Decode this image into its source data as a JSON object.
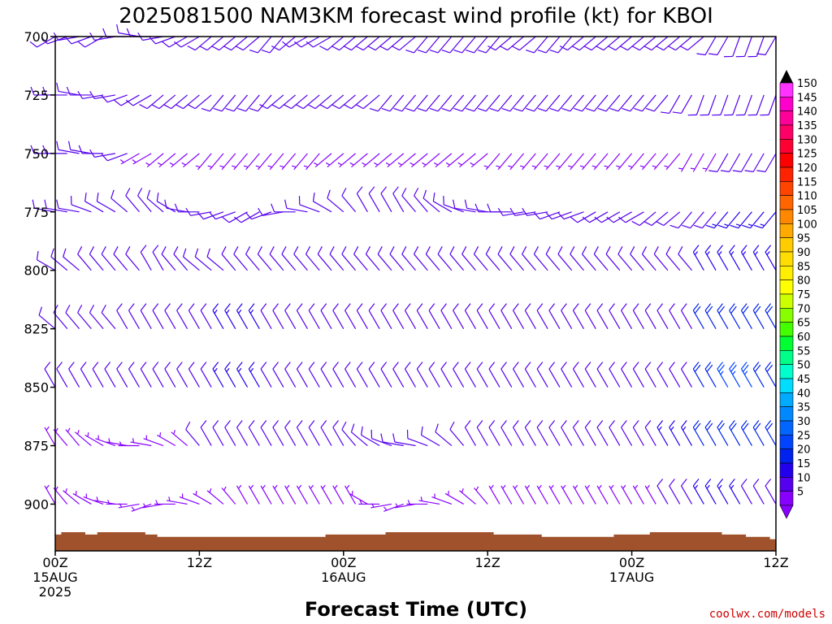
{
  "title": "2025081500 NAM3KM forecast wind profile (kt) for KBOI",
  "credit": "coolwx.com/models",
  "colors": {
    "barb": "#7733ee",
    "terrain": "#a0522d",
    "credit": "#cc0000"
  },
  "chart_data": {
    "type": "wind-barb",
    "title": "2025081500 NAM3KM forecast wind profile (kt) for KBOI",
    "xlabel": "Forecast Time (UTC)",
    "ylabel": "",
    "y_scale": "pressure (reversed)",
    "ylim": [
      700,
      920
    ],
    "y_ticks": [
      700,
      725,
      750,
      775,
      800,
      825,
      850,
      875,
      900
    ],
    "x_ticks": [
      {
        "hour": 0,
        "lines": [
          "00Z",
          "15AUG",
          "2025"
        ]
      },
      {
        "hour": 12,
        "lines": [
          "12Z"
        ]
      },
      {
        "hour": 24,
        "lines": [
          "00Z",
          "16AUG"
        ]
      },
      {
        "hour": 36,
        "lines": [
          "12Z"
        ]
      },
      {
        "hour": 48,
        "lines": [
          "00Z",
          "17AUG"
        ]
      },
      {
        "hour": 60,
        "lines": [
          "12Z"
        ]
      }
    ],
    "xlim_hours": [
      0,
      60
    ],
    "time_step_hours": 1,
    "levels_mb": [
      700,
      725,
      750,
      775,
      800,
      825,
      850,
      875,
      900
    ],
    "colorbar": {
      "units": "kt",
      "ticks": [
        150,
        145,
        140,
        135,
        130,
        125,
        120,
        115,
        110,
        105,
        100,
        95,
        90,
        85,
        80,
        75,
        70,
        65,
        60,
        55,
        50,
        45,
        40,
        35,
        30,
        25,
        20,
        15,
        10,
        5
      ],
      "colors": [
        "#ff33ff",
        "#ff00cc",
        "#ff0099",
        "#ff0066",
        "#ff0033",
        "#ff0000",
        "#ff2200",
        "#ff4400",
        "#ff6600",
        "#ff8800",
        "#ffaa00",
        "#ffcc00",
        "#ffdd00",
        "#ffee00",
        "#ffff00",
        "#ccff00",
        "#88ff00",
        "#44ff00",
        "#00ff33",
        "#00ff88",
        "#00ffcc",
        "#00ddff",
        "#00aaff",
        "#0088ff",
        "#0066ff",
        "#0044ff",
        "#0022ee",
        "#2200ee",
        "#5500ee",
        "#8800ff"
      ]
    },
    "surface_pressure_mb": [
      913,
      912,
      912,
      913,
      912,
      912,
      912,
      912,
      913,
      914,
      914,
      914,
      914,
      914,
      914,
      914,
      914,
      914,
      914,
      914,
      914,
      914,
      914,
      913,
      913,
      913,
      913,
      913,
      912,
      912,
      912,
      912,
      912,
      912,
      912,
      912,
      912,
      913,
      913,
      913,
      913,
      914,
      914,
      914,
      914,
      914,
      914,
      913,
      913,
      913,
      912,
      912,
      912,
      912,
      912,
      912,
      913,
      913,
      914,
      914,
      915
    ],
    "profile": [
      {
        "mb": 700,
        "dir": [
          240,
          250,
          260,
          250,
          240,
          260,
          270,
          280,
          270,
          260,
          250,
          240,
          240,
          230,
          230,
          230,
          230,
          230,
          220,
          220,
          230,
          240,
          240,
          240,
          230,
          230,
          230,
          230,
          230,
          230,
          230,
          220,
          220,
          220,
          220,
          220,
          220,
          220,
          230,
          230,
          230,
          220,
          220,
          220,
          230,
          230,
          230,
          230,
          230,
          230,
          230,
          230,
          230,
          230,
          230,
          210,
          210,
          200,
          200,
          200,
          210
        ],
        "spd": [
          10,
          10,
          10,
          10,
          10,
          10,
          8,
          8,
          8,
          8,
          8,
          8,
          8,
          8,
          8,
          8,
          8,
          8,
          8,
          8,
          8,
          8,
          8,
          8,
          10,
          10,
          10,
          10,
          10,
          10,
          10,
          10,
          10,
          10,
          10,
          10,
          10,
          10,
          10,
          10,
          10,
          10,
          10,
          10,
          10,
          12,
          12,
          12,
          12,
          12,
          12,
          12,
          12,
          12,
          12,
          12,
          12,
          12,
          12,
          12,
          12
        ]
      },
      {
        "mb": 725,
        "dir": [
          270,
          270,
          280,
          270,
          260,
          260,
          250,
          240,
          240,
          230,
          230,
          230,
          230,
          230,
          220,
          220,
          220,
          220,
          220,
          230,
          230,
          230,
          230,
          230,
          230,
          230,
          230,
          230,
          220,
          220,
          220,
          220,
          220,
          220,
          220,
          220,
          220,
          220,
          220,
          220,
          220,
          220,
          220,
          220,
          220,
          220,
          220,
          220,
          220,
          220,
          220,
          220,
          210,
          210,
          200,
          200,
          200,
          200,
          200,
          200,
          200
        ],
        "spd": [
          10,
          10,
          10,
          10,
          10,
          8,
          8,
          8,
          8,
          8,
          8,
          8,
          8,
          8,
          8,
          8,
          8,
          8,
          8,
          8,
          8,
          8,
          8,
          8,
          8,
          8,
          8,
          8,
          8,
          8,
          8,
          8,
          8,
          8,
          8,
          8,
          8,
          8,
          8,
          8,
          8,
          8,
          8,
          8,
          8,
          8,
          8,
          8,
          8,
          8,
          8,
          8,
          10,
          10,
          10,
          10,
          10,
          10,
          10,
          10,
          10
        ]
      },
      {
        "mb": 750,
        "dir": [
          270,
          270,
          280,
          280,
          270,
          260,
          250,
          240,
          240,
          230,
          230,
          230,
          230,
          220,
          220,
          220,
          220,
          220,
          220,
          220,
          220,
          220,
          220,
          230,
          230,
          230,
          230,
          230,
          230,
          230,
          230,
          230,
          230,
          230,
          230,
          230,
          230,
          220,
          220,
          220,
          220,
          220,
          220,
          220,
          220,
          220,
          220,
          220,
          220,
          220,
          220,
          220,
          220,
          210,
          210,
          210,
          210,
          210,
          210,
          210,
          210
        ],
        "spd": [
          10,
          10,
          10,
          10,
          10,
          8,
          8,
          5,
          5,
          5,
          5,
          5,
          5,
          5,
          5,
          5,
          5,
          5,
          5,
          5,
          5,
          5,
          5,
          5,
          5,
          5,
          5,
          5,
          5,
          5,
          5,
          5,
          5,
          5,
          5,
          5,
          5,
          5,
          5,
          5,
          5,
          5,
          5,
          5,
          5,
          5,
          5,
          5,
          5,
          5,
          5,
          5,
          5,
          5,
          5,
          5,
          10,
          10,
          10,
          10,
          10
        ]
      },
      {
        "mb": 775,
        "dir": [
          280,
          280,
          280,
          290,
          300,
          300,
          310,
          320,
          320,
          310,
          300,
          280,
          270,
          260,
          250,
          250,
          240,
          240,
          250,
          260,
          270,
          280,
          290,
          300,
          310,
          320,
          330,
          330,
          330,
          330,
          320,
          320,
          310,
          300,
          290,
          280,
          280,
          270,
          270,
          260,
          260,
          260,
          250,
          250,
          250,
          240,
          240,
          240,
          240,
          240,
          230,
          230,
          230,
          220,
          220,
          220,
          220,
          220,
          220,
          220,
          220
        ],
        "spd": [
          10,
          10,
          10,
          10,
          8,
          8,
          8,
          8,
          8,
          8,
          8,
          8,
          8,
          8,
          8,
          8,
          8,
          8,
          8,
          8,
          8,
          8,
          8,
          8,
          8,
          8,
          8,
          8,
          8,
          8,
          8,
          8,
          8,
          8,
          8,
          8,
          8,
          8,
          8,
          8,
          8,
          8,
          8,
          8,
          8,
          8,
          8,
          8,
          8,
          8,
          8,
          8,
          8,
          10,
          10,
          10,
          15,
          15,
          15,
          15,
          15
        ]
      },
      {
        "mb": 800,
        "dir": [
          300,
          310,
          310,
          320,
          320,
          320,
          320,
          320,
          330,
          330,
          320,
          320,
          310,
          310,
          310,
          320,
          320,
          320,
          320,
          320,
          320,
          320,
          320,
          320,
          320,
          320,
          320,
          320,
          320,
          320,
          320,
          320,
          320,
          320,
          320,
          320,
          320,
          320,
          320,
          320,
          320,
          320,
          320,
          320,
          320,
          320,
          320,
          320,
          320,
          320,
          320,
          320,
          320,
          320,
          330,
          330,
          330,
          330,
          330,
          330,
          330
        ],
        "spd": [
          8,
          8,
          8,
          8,
          8,
          8,
          8,
          8,
          8,
          8,
          8,
          8,
          8,
          8,
          10,
          10,
          10,
          10,
          10,
          10,
          10,
          10,
          10,
          10,
          10,
          10,
          10,
          10,
          10,
          10,
          10,
          10,
          10,
          10,
          10,
          10,
          10,
          10,
          10,
          10,
          10,
          10,
          10,
          10,
          10,
          10,
          10,
          10,
          10,
          10,
          10,
          10,
          10,
          10,
          15,
          15,
          15,
          15,
          15,
          15,
          15
        ]
      },
      {
        "mb": 825,
        "dir": [
          310,
          320,
          320,
          320,
          320,
          320,
          330,
          330,
          330,
          330,
          330,
          330,
          330,
          330,
          330,
          330,
          330,
          330,
          330,
          330,
          330,
          330,
          330,
          330,
          330,
          330,
          330,
          330,
          330,
          330,
          330,
          330,
          330,
          330,
          330,
          330,
          330,
          330,
          330,
          330,
          330,
          330,
          330,
          330,
          330,
          330,
          330,
          330,
          330,
          330,
          330,
          330,
          330,
          330,
          330,
          330,
          330,
          330,
          330,
          330,
          330
        ],
        "spd": [
          8,
          8,
          8,
          8,
          8,
          8,
          8,
          8,
          8,
          8,
          8,
          8,
          10,
          10,
          15,
          15,
          15,
          15,
          10,
          10,
          10,
          10,
          10,
          10,
          10,
          10,
          10,
          10,
          10,
          10,
          10,
          10,
          10,
          10,
          10,
          10,
          10,
          10,
          10,
          10,
          10,
          10,
          10,
          10,
          10,
          10,
          10,
          10,
          10,
          10,
          10,
          10,
          10,
          10,
          20,
          20,
          20,
          20,
          20,
          20,
          20
        ]
      },
      {
        "mb": 850,
        "dir": [
          330,
          330,
          330,
          330,
          330,
          330,
          330,
          330,
          330,
          330,
          330,
          330,
          330,
          330,
          330,
          330,
          330,
          330,
          330,
          330,
          330,
          330,
          330,
          330,
          330,
          330,
          330,
          330,
          330,
          330,
          330,
          330,
          330,
          330,
          330,
          330,
          330,
          330,
          330,
          330,
          330,
          330,
          330,
          330,
          330,
          330,
          330,
          330,
          330,
          330,
          330,
          330,
          330,
          330,
          330,
          330,
          330,
          330,
          330,
          330,
          330
        ],
        "spd": [
          8,
          8,
          8,
          8,
          8,
          8,
          8,
          8,
          8,
          8,
          8,
          8,
          10,
          10,
          15,
          15,
          15,
          15,
          10,
          10,
          10,
          10,
          10,
          10,
          10,
          10,
          10,
          10,
          10,
          10,
          10,
          10,
          10,
          10,
          10,
          10,
          10,
          10,
          10,
          10,
          10,
          10,
          10,
          10,
          10,
          10,
          10,
          10,
          10,
          10,
          10,
          10,
          10,
          10,
          20,
          20,
          25,
          25,
          25,
          20,
          20
        ]
      },
      {
        "mb": 875,
        "dir": [
          330,
          320,
          320,
          310,
          300,
          290,
          280,
          270,
          280,
          290,
          300,
          310,
          320,
          330,
          330,
          330,
          330,
          330,
          330,
          330,
          330,
          330,
          330,
          330,
          330,
          320,
          310,
          300,
          290,
          280,
          280,
          290,
          300,
          310,
          320,
          330,
          330,
          330,
          330,
          330,
          330,
          330,
          330,
          330,
          330,
          330,
          330,
          330,
          330,
          330,
          330,
          330,
          330,
          330,
          330,
          330,
          330,
          330,
          330,
          330,
          330
        ],
        "spd": [
          5,
          5,
          5,
          5,
          5,
          5,
          5,
          5,
          5,
          5,
          5,
          5,
          8,
          8,
          8,
          8,
          8,
          8,
          8,
          8,
          8,
          8,
          8,
          8,
          8,
          8,
          8,
          8,
          8,
          8,
          8,
          8,
          8,
          8,
          8,
          8,
          8,
          8,
          8,
          8,
          8,
          8,
          8,
          8,
          8,
          8,
          8,
          8,
          8,
          8,
          8,
          15,
          15,
          15,
          20,
          20,
          20,
          20,
          20,
          20,
          20
        ]
      },
      {
        "mb": 900,
        "dir": [
          330,
          320,
          310,
          300,
          290,
          280,
          270,
          260,
          250,
          260,
          270,
          280,
          290,
          300,
          310,
          320,
          330,
          330,
          330,
          330,
          330,
          330,
          330,
          330,
          330,
          330,
          300,
          270,
          260,
          250,
          260,
          270,
          280,
          290,
          300,
          310,
          320,
          330,
          330,
          330,
          330,
          330,
          330,
          330,
          330,
          330,
          330,
          330,
          330,
          330,
          330,
          330,
          330,
          330,
          330,
          330,
          330,
          330,
          330,
          330,
          330
        ],
        "spd": [
          5,
          5,
          5,
          5,
          5,
          5,
          5,
          5,
          5,
          5,
          5,
          5,
          5,
          5,
          5,
          5,
          5,
          5,
          5,
          5,
          5,
          5,
          5,
          5,
          5,
          5,
          5,
          5,
          5,
          5,
          5,
          5,
          5,
          5,
          5,
          5,
          5,
          5,
          5,
          5,
          5,
          5,
          5,
          5,
          5,
          5,
          5,
          5,
          5,
          5,
          5,
          10,
          10,
          10,
          15,
          15,
          15,
          15,
          10,
          10,
          10
        ]
      }
    ]
  }
}
